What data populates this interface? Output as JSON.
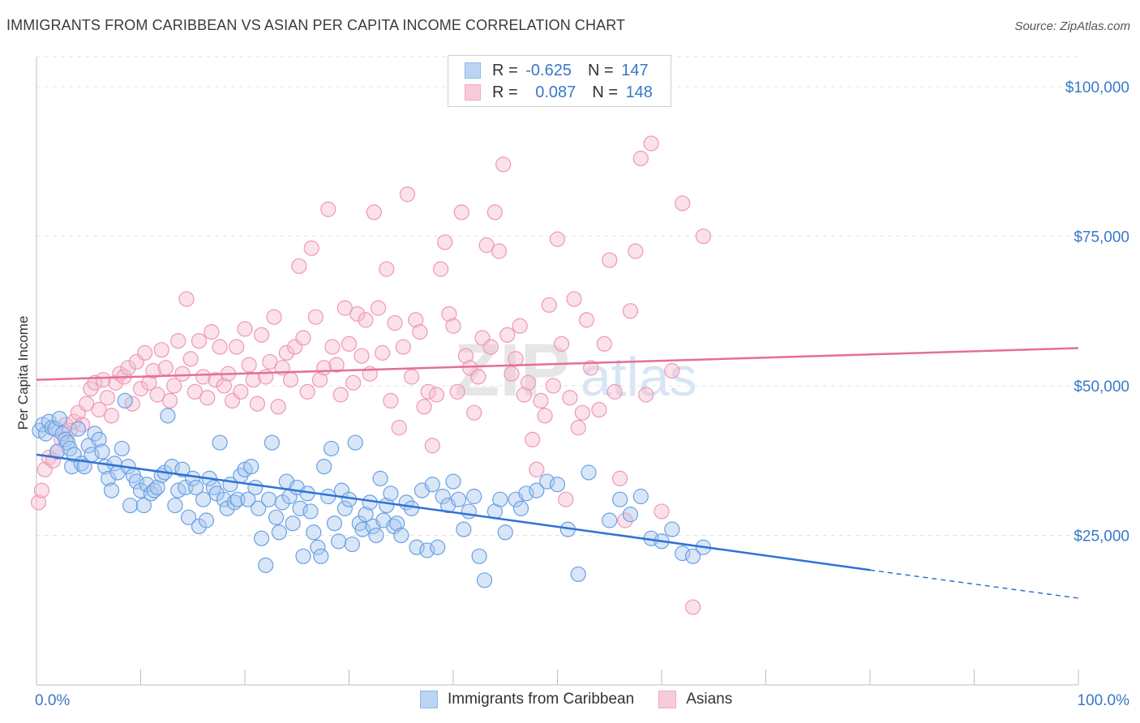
{
  "header": {
    "title": "IMMIGRANTS FROM CARIBBEAN VS ASIAN PER CAPITA INCOME CORRELATION CHART",
    "source": "Source: ZipAtlas.com"
  },
  "legend": {
    "rows": [
      {
        "r_label": "R =",
        "r_value": "-0.625",
        "n_label": "N =",
        "n_value": "147",
        "color": "#8fb8ec"
      },
      {
        "r_label": "R =",
        "r_value": "0.087",
        "n_label": "N =",
        "n_value": "148",
        "color": "#f3a9c0"
      }
    ]
  },
  "bottom_legend": {
    "series1": "Immigrants from Caribbean",
    "series2": "Asians"
  },
  "watermark": {
    "zip": "ZIP",
    "atlas": "atlas"
  },
  "chart_data": {
    "type": "scatter",
    "title": "IMMIGRANTS FROM CARIBBEAN VS ASIAN PER CAPITA INCOME CORRELATION CHART",
    "xlabel": "",
    "ylabel": "Per Capita Income",
    "xlim": [
      0,
      100
    ],
    "ylim": [
      0,
      105000
    ],
    "x_tick_labels": [
      "0.0%",
      "100.0%"
    ],
    "y_ticks": [
      25000,
      50000,
      75000,
      100000
    ],
    "y_tick_labels": [
      "$25,000",
      "$50,000",
      "$75,000",
      "$100,000"
    ],
    "grid": true,
    "legend_position": "top-center",
    "series": [
      {
        "name": "Immigrants from Caribbean",
        "color": "#6aa0e4",
        "line_color": "#2f72d6",
        "r": -0.625,
        "n": 147,
        "trend": {
          "x0": 0,
          "y0": 38500,
          "x1": 80,
          "y1": 19200,
          "dash_to_x": 100,
          "dash_to_y": 14500
        },
        "points": [
          [
            0.3,
            42500
          ],
          [
            0.6,
            43500
          ],
          [
            0.9,
            42000
          ],
          [
            1.2,
            44000
          ],
          [
            1.5,
            43000
          ],
          [
            1.8,
            42800
          ],
          [
            2.0,
            39000
          ],
          [
            2.2,
            44500
          ],
          [
            2.5,
            42000
          ],
          [
            2.8,
            41000
          ],
          [
            3.0,
            40500
          ],
          [
            3.2,
            39500
          ],
          [
            3.4,
            36500
          ],
          [
            3.6,
            38500
          ],
          [
            4.0,
            42800
          ],
          [
            4.3,
            37000
          ],
          [
            4.6,
            36500
          ],
          [
            5.0,
            40000
          ],
          [
            5.3,
            38500
          ],
          [
            5.6,
            42000
          ],
          [
            6.0,
            41000
          ],
          [
            6.3,
            39000
          ],
          [
            6.6,
            36500
          ],
          [
            6.9,
            34500
          ],
          [
            7.2,
            32500
          ],
          [
            7.5,
            37000
          ],
          [
            7.8,
            35500
          ],
          [
            8.2,
            39500
          ],
          [
            8.5,
            47500
          ],
          [
            8.8,
            36500
          ],
          [
            9.0,
            30000
          ],
          [
            9.3,
            35000
          ],
          [
            9.6,
            34000
          ],
          [
            10.0,
            32500
          ],
          [
            10.3,
            30000
          ],
          [
            10.6,
            33500
          ],
          [
            11.0,
            32000
          ],
          [
            11.3,
            32500
          ],
          [
            11.6,
            33000
          ],
          [
            12.0,
            35000
          ],
          [
            12.3,
            35500
          ],
          [
            12.6,
            45000
          ],
          [
            13.0,
            36500
          ],
          [
            13.3,
            30000
          ],
          [
            13.6,
            32500
          ],
          [
            14.0,
            36000
          ],
          [
            14.3,
            33000
          ],
          [
            14.6,
            28000
          ],
          [
            15.0,
            34500
          ],
          [
            15.3,
            33000
          ],
          [
            15.6,
            26500
          ],
          [
            16.0,
            31000
          ],
          [
            16.3,
            27500
          ],
          [
            16.6,
            34500
          ],
          [
            17.0,
            33000
          ],
          [
            17.3,
            32000
          ],
          [
            17.6,
            40500
          ],
          [
            18.0,
            31000
          ],
          [
            18.3,
            29500
          ],
          [
            18.6,
            33500
          ],
          [
            19.0,
            30500
          ],
          [
            19.3,
            31000
          ],
          [
            19.6,
            35000
          ],
          [
            20.0,
            36000
          ],
          [
            20.3,
            31000
          ],
          [
            20.6,
            36500
          ],
          [
            21.0,
            33000
          ],
          [
            21.3,
            29500
          ],
          [
            21.6,
            24500
          ],
          [
            22.0,
            20000
          ],
          [
            22.3,
            31000
          ],
          [
            22.6,
            40500
          ],
          [
            23.0,
            28000
          ],
          [
            23.3,
            25500
          ],
          [
            23.6,
            30500
          ],
          [
            24.0,
            34000
          ],
          [
            24.3,
            31500
          ],
          [
            24.6,
            27000
          ],
          [
            25.0,
            33000
          ],
          [
            25.3,
            29500
          ],
          [
            25.6,
            21500
          ],
          [
            26.0,
            32000
          ],
          [
            26.3,
            29000
          ],
          [
            26.6,
            25500
          ],
          [
            27.0,
            23000
          ],
          [
            27.3,
            21500
          ],
          [
            27.6,
            36500
          ],
          [
            28.0,
            31500
          ],
          [
            28.3,
            39500
          ],
          [
            28.6,
            27000
          ],
          [
            29.0,
            24000
          ],
          [
            29.3,
            32500
          ],
          [
            29.6,
            29500
          ],
          [
            30.0,
            31000
          ],
          [
            30.3,
            23500
          ],
          [
            30.6,
            40500
          ],
          [
            31.0,
            27000
          ],
          [
            31.3,
            26000
          ],
          [
            31.6,
            28500
          ],
          [
            32.0,
            30500
          ],
          [
            32.3,
            26500
          ],
          [
            32.6,
            25000
          ],
          [
            33.0,
            34500
          ],
          [
            33.3,
            27500
          ],
          [
            33.6,
            30000
          ],
          [
            34.0,
            32000
          ],
          [
            34.3,
            26500
          ],
          [
            34.6,
            27000
          ],
          [
            35.0,
            25000
          ],
          [
            35.5,
            30500
          ],
          [
            36.0,
            29500
          ],
          [
            36.5,
            23000
          ],
          [
            37.0,
            32500
          ],
          [
            37.5,
            22500
          ],
          [
            38.0,
            33500
          ],
          [
            38.5,
            23000
          ],
          [
            39.0,
            31500
          ],
          [
            39.5,
            30000
          ],
          [
            40.0,
            34000
          ],
          [
            40.5,
            31000
          ],
          [
            41.0,
            26000
          ],
          [
            41.5,
            29000
          ],
          [
            42.0,
            31500
          ],
          [
            42.5,
            21500
          ],
          [
            43.0,
            17500
          ],
          [
            44.0,
            29000
          ],
          [
            44.5,
            31000
          ],
          [
            45.0,
            25500
          ],
          [
            46.0,
            31000
          ],
          [
            46.5,
            29500
          ],
          [
            47.0,
            32000
          ],
          [
            48.0,
            32500
          ],
          [
            49.0,
            34000
          ],
          [
            50.0,
            33500
          ],
          [
            51.0,
            26000
          ],
          [
            52.0,
            18500
          ],
          [
            53.0,
            35500
          ],
          [
            55.0,
            27500
          ],
          [
            56.0,
            31000
          ],
          [
            57.0,
            28500
          ],
          [
            58.0,
            31500
          ],
          [
            59.0,
            24500
          ],
          [
            60.0,
            24000
          ],
          [
            61.0,
            26000
          ],
          [
            62.0,
            22000
          ],
          [
            63.0,
            21500
          ],
          [
            64.0,
            23000
          ]
        ]
      },
      {
        "name": "Asians",
        "color": "#f5a9c1",
        "line_color": "#e46f97",
        "r": 0.087,
        "n": 148,
        "trend": {
          "x0": 0,
          "y0": 51000,
          "x1": 100,
          "y1": 56300
        },
        "points": [
          [
            0.2,
            30500
          ],
          [
            0.5,
            32500
          ],
          [
            0.8,
            36000
          ],
          [
            1.2,
            38000
          ],
          [
            1.6,
            37500
          ],
          [
            2.0,
            39000
          ],
          [
            2.4,
            41000
          ],
          [
            2.8,
            43500
          ],
          [
            3.2,
            42500
          ],
          [
            3.6,
            44000
          ],
          [
            4.0,
            45500
          ],
          [
            4.4,
            43500
          ],
          [
            4.8,
            47000
          ],
          [
            5.2,
            49500
          ],
          [
            5.6,
            50500
          ],
          [
            6.0,
            46000
          ],
          [
            6.4,
            51000
          ],
          [
            6.8,
            48000
          ],
          [
            7.2,
            45000
          ],
          [
            7.6,
            50500
          ],
          [
            8.0,
            52000
          ],
          [
            8.4,
            51500
          ],
          [
            8.8,
            53000
          ],
          [
            9.2,
            47000
          ],
          [
            9.6,
            54000
          ],
          [
            10.0,
            49500
          ],
          [
            10.4,
            55500
          ],
          [
            10.8,
            50500
          ],
          [
            11.2,
            52500
          ],
          [
            11.6,
            48500
          ],
          [
            12.0,
            56000
          ],
          [
            12.4,
            53000
          ],
          [
            12.8,
            47500
          ],
          [
            13.2,
            50000
          ],
          [
            13.6,
            57500
          ],
          [
            14.0,
            52000
          ],
          [
            14.4,
            64500
          ],
          [
            14.8,
            54500
          ],
          [
            15.2,
            49000
          ],
          [
            15.6,
            57500
          ],
          [
            16.0,
            51500
          ],
          [
            16.4,
            48000
          ],
          [
            16.8,
            59000
          ],
          [
            17.2,
            51000
          ],
          [
            17.6,
            56500
          ],
          [
            18.0,
            50000
          ],
          [
            18.4,
            52000
          ],
          [
            18.8,
            47500
          ],
          [
            19.2,
            56500
          ],
          [
            19.6,
            49000
          ],
          [
            20.0,
            59500
          ],
          [
            20.4,
            53500
          ],
          [
            20.8,
            51000
          ],
          [
            21.2,
            47000
          ],
          [
            21.6,
            58500
          ],
          [
            22.0,
            51500
          ],
          [
            22.4,
            54000
          ],
          [
            22.8,
            61500
          ],
          [
            23.2,
            46500
          ],
          [
            23.6,
            53000
          ],
          [
            24.0,
            55500
          ],
          [
            24.4,
            51000
          ],
          [
            24.8,
            56500
          ],
          [
            25.2,
            70000
          ],
          [
            25.6,
            58000
          ],
          [
            26.0,
            49000
          ],
          [
            26.4,
            73000
          ],
          [
            26.8,
            61500
          ],
          [
            27.2,
            51000
          ],
          [
            27.6,
            53000
          ],
          [
            28.0,
            79500
          ],
          [
            28.4,
            56500
          ],
          [
            28.8,
            53500
          ],
          [
            29.2,
            48500
          ],
          [
            29.6,
            63000
          ],
          [
            30.0,
            57000
          ],
          [
            30.4,
            50500
          ],
          [
            30.8,
            62000
          ],
          [
            31.2,
            55000
          ],
          [
            31.6,
            61000
          ],
          [
            32.0,
            52000
          ],
          [
            32.4,
            79000
          ],
          [
            32.8,
            63000
          ],
          [
            33.2,
            55500
          ],
          [
            33.6,
            69500
          ],
          [
            34.0,
            47500
          ],
          [
            34.4,
            60500
          ],
          [
            34.8,
            43000
          ],
          [
            35.2,
            56500
          ],
          [
            35.6,
            82000
          ],
          [
            36.0,
            51500
          ],
          [
            36.4,
            61000
          ],
          [
            36.8,
            59000
          ],
          [
            37.2,
            46500
          ],
          [
            37.6,
            49000
          ],
          [
            38.0,
            40000
          ],
          [
            38.4,
            48500
          ],
          [
            38.8,
            69500
          ],
          [
            39.2,
            74000
          ],
          [
            39.6,
            62000
          ],
          [
            40.0,
            60000
          ],
          [
            40.4,
            49000
          ],
          [
            40.8,
            79000
          ],
          [
            41.2,
            55000
          ],
          [
            41.6,
            53000
          ],
          [
            42.0,
            45500
          ],
          [
            42.4,
            51500
          ],
          [
            42.8,
            58000
          ],
          [
            43.2,
            73500
          ],
          [
            43.6,
            56500
          ],
          [
            44.0,
            79000
          ],
          [
            44.4,
            72500
          ],
          [
            44.8,
            87000
          ],
          [
            45.2,
            58500
          ],
          [
            45.6,
            52000
          ],
          [
            46.0,
            54500
          ],
          [
            46.4,
            60000
          ],
          [
            46.8,
            48500
          ],
          [
            47.2,
            50500
          ],
          [
            47.6,
            41000
          ],
          [
            48.0,
            36000
          ],
          [
            48.4,
            47500
          ],
          [
            48.8,
            45000
          ],
          [
            49.2,
            63500
          ],
          [
            49.6,
            50000
          ],
          [
            50.0,
            74500
          ],
          [
            50.4,
            57000
          ],
          [
            50.8,
            31000
          ],
          [
            51.2,
            48000
          ],
          [
            51.6,
            64500
          ],
          [
            52.0,
            43000
          ],
          [
            52.4,
            45500
          ],
          [
            52.8,
            61000
          ],
          [
            53.2,
            53000
          ],
          [
            54.0,
            46000
          ],
          [
            54.5,
            57000
          ],
          [
            55.0,
            71000
          ],
          [
            55.5,
            49000
          ],
          [
            56.0,
            34500
          ],
          [
            56.5,
            27500
          ],
          [
            57.0,
            62500
          ],
          [
            57.5,
            72500
          ],
          [
            58.0,
            88000
          ],
          [
            58.5,
            48500
          ],
          [
            59.0,
            90500
          ],
          [
            60.0,
            29000
          ],
          [
            61.0,
            52500
          ],
          [
            62.0,
            80500
          ],
          [
            63.0,
            13000
          ],
          [
            64.0,
            75000
          ]
        ]
      }
    ]
  }
}
